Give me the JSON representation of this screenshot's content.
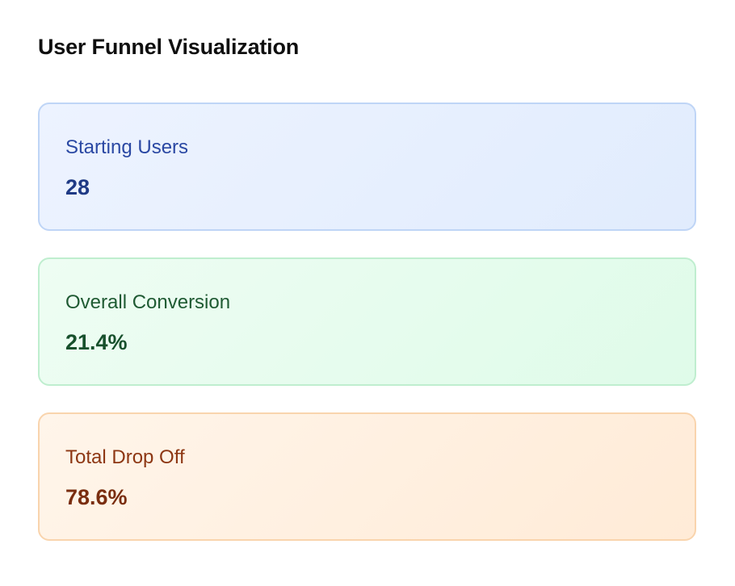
{
  "page": {
    "title": "User Funnel Visualization"
  },
  "stats": [
    {
      "label": "Starting Users",
      "value": "28",
      "accent": "#2a48a3",
      "background": "#e8f0fe",
      "border": "#bfd5f6"
    },
    {
      "label": "Overall Conversion",
      "value": "21.4%",
      "accent": "#1f5a33",
      "background": "#e6fcee",
      "border": "#bfeecf"
    },
    {
      "label": "Total Drop Off",
      "value": "78.6%",
      "accent": "#8d3713",
      "background": "#fff0e1",
      "border": "#f9d4ad"
    }
  ]
}
